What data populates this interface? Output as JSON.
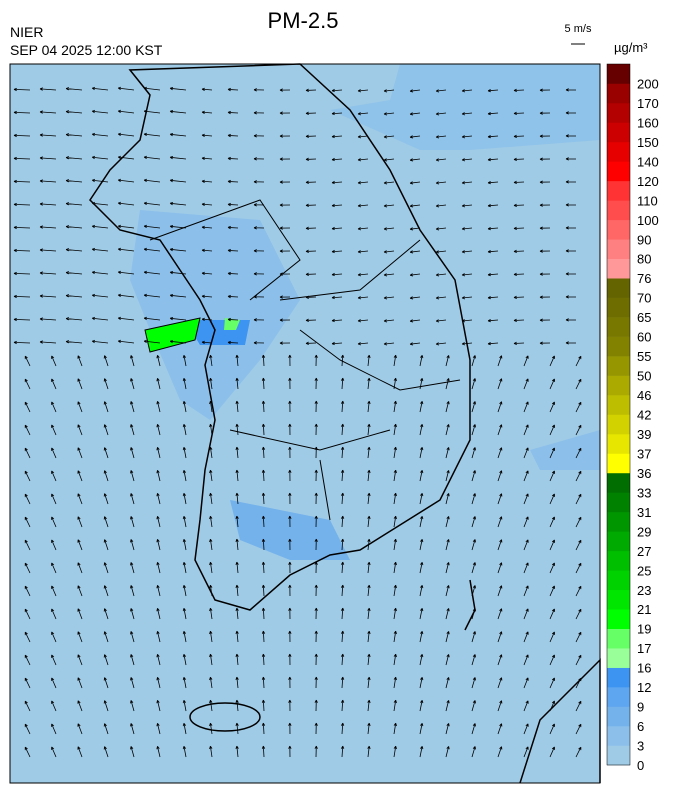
{
  "header": {
    "title": "PM-2.5",
    "source": "NIER",
    "datetime": "SEP 04 2025 12:00 KST",
    "wind_scale": "5 m/s"
  },
  "legend": {
    "unit": "µg/m³",
    "labels": [
      "0",
      "3",
      "6",
      "9",
      "12",
      "16",
      "17",
      "19",
      "21",
      "23",
      "25",
      "27",
      "29",
      "31",
      "33",
      "36",
      "37",
      "39",
      "42",
      "46",
      "50",
      "55",
      "60",
      "65",
      "70",
      "76",
      "80",
      "90",
      "100",
      "110",
      "120",
      "140",
      "150",
      "160",
      "170",
      "200"
    ],
    "colors": [
      "#9fcbe6",
      "#8cc0ea",
      "#74b2ec",
      "#5ea6ef",
      "#3e94f1",
      "#99ff99",
      "#66ff66",
      "#00ff00",
      "#00e600",
      "#00d200",
      "#00be00",
      "#00aa00",
      "#009600",
      "#008200",
      "#006e00",
      "#ffff00",
      "#e6e600",
      "#d2d200",
      "#bebe00",
      "#aaaa00",
      "#969600",
      "#828200",
      "#787800",
      "#6e6e00",
      "#646400",
      "#ff9999",
      "#ff8080",
      "#ff6666",
      "#ff4d4d",
      "#ff3333",
      "#ff0000",
      "#e60000",
      "#cc0000",
      "#b30000",
      "#990000",
      "#660000"
    ]
  }
}
